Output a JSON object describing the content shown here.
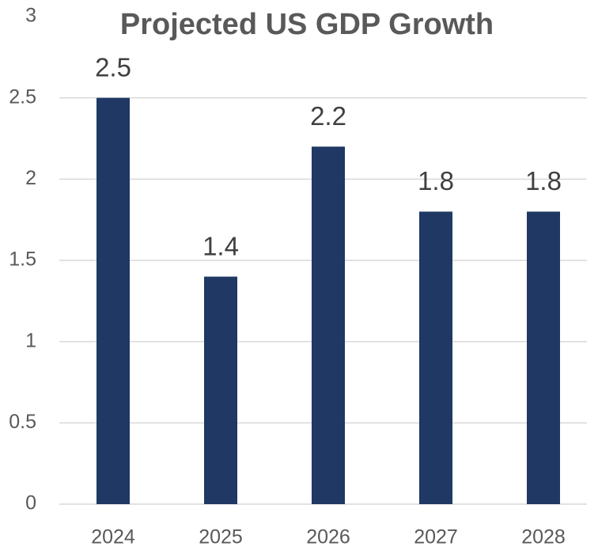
{
  "chart_data": {
    "type": "bar",
    "title": "Projected US GDP Growth",
    "categories": [
      "2024",
      "2025",
      "2026",
      "2027",
      "2028"
    ],
    "values": [
      2.5,
      1.4,
      2.2,
      1.8,
      1.8
    ],
    "color": "#1f3864",
    "ylim": [
      0,
      3
    ],
    "yticks": [
      0,
      0.5,
      1,
      1.5,
      2,
      2.5,
      3
    ],
    "grid": true
  }
}
